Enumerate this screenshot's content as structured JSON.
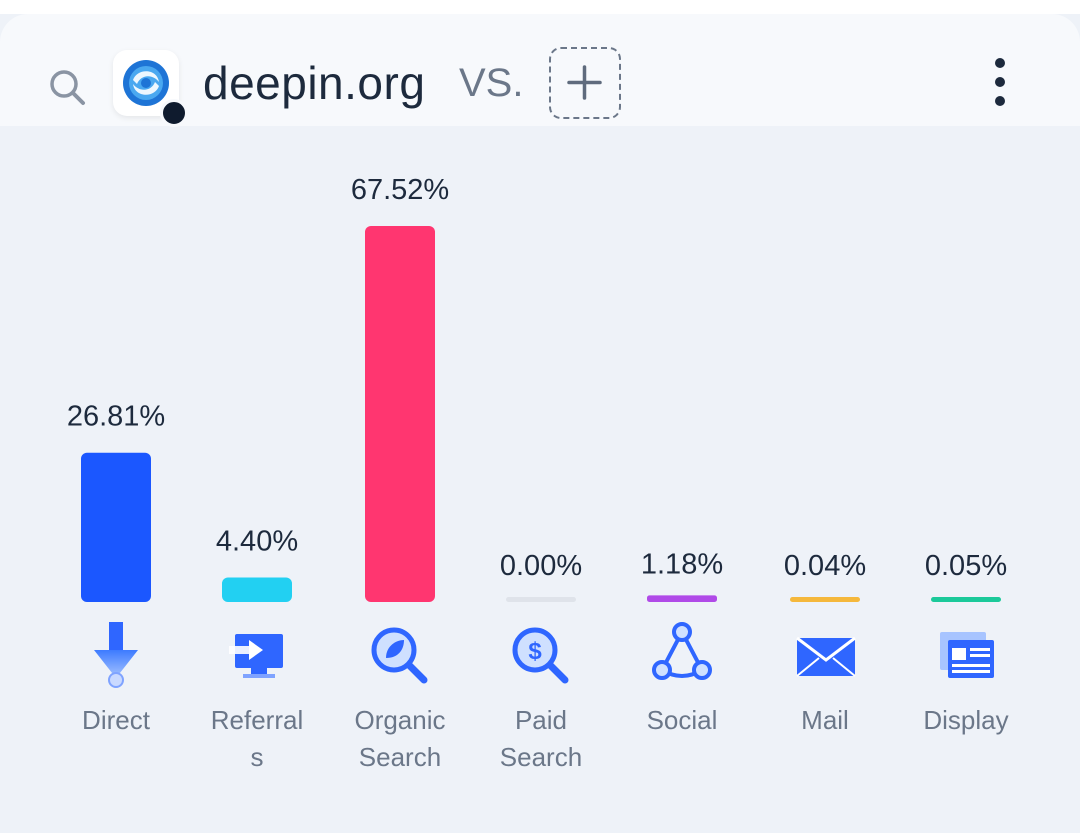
{
  "header": {
    "domain": "deepin.org",
    "vs_label": "VS."
  },
  "icons": {
    "search": "search-icon",
    "logo": "deepin-logo",
    "add": "plus-icon",
    "more": "more-vertical-icon"
  },
  "chart_data": {
    "type": "bar",
    "categories": [
      "Direct",
      "Referrals",
      "Organic Search",
      "Paid Search",
      "Social",
      "Mail",
      "Display"
    ],
    "category_labels": [
      [
        "Direct"
      ],
      [
        "Referral",
        "s"
      ],
      [
        "Organic",
        "Search"
      ],
      [
        "Paid",
        "Search"
      ],
      [
        "Social"
      ],
      [
        "Mail"
      ],
      [
        "Display"
      ]
    ],
    "values": [
      26.81,
      4.4,
      67.52,
      0.0,
      1.18,
      0.04,
      0.05
    ],
    "value_labels": [
      "26.81%",
      "4.40%",
      "67.52%",
      "0.00%",
      "1.18%",
      "0.04%",
      "0.05%"
    ],
    "colors": [
      "#1b57ff",
      "#22d0f2",
      "#ff3670",
      "#dfe3ea",
      "#b04ae8",
      "#f5b83c",
      "#1bc99a"
    ],
    "icon_names": [
      "arrow-down-icon",
      "referral-monitor-icon",
      "organic-search-icon",
      "paid-search-icon",
      "social-share-icon",
      "mail-icon",
      "display-ad-icon"
    ],
    "ylim": [
      0,
      67.52
    ],
    "grid": false,
    "legend": "none"
  }
}
